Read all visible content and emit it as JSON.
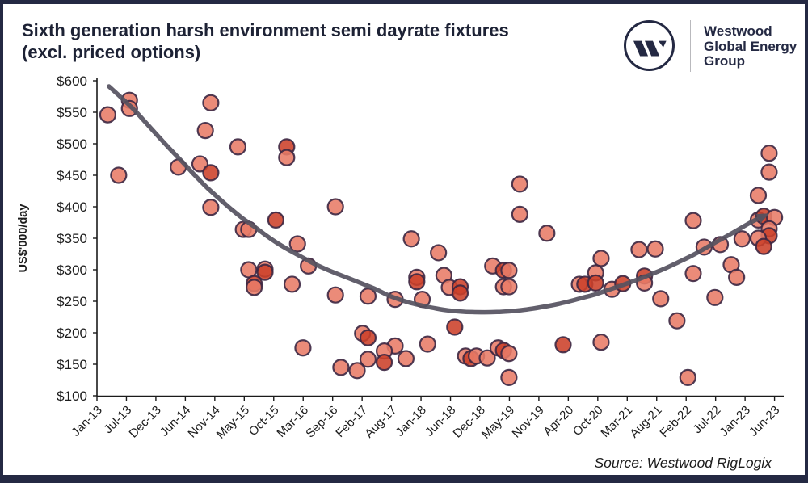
{
  "header": {
    "title_line1": "Sixth generation harsh environment semi dayrate fixtures",
    "title_line2": "(excl. priced options)"
  },
  "logo": {
    "name": "westwood-monogram",
    "line1": "Westwood",
    "line2": "Global Energy",
    "line3": "Group"
  },
  "footer": {
    "source": "Source: Westwood RigLogix"
  },
  "chart_data": {
    "type": "scatter",
    "title": "Sixth generation harsh environment semi dayrate fixtures (excl. priced options)",
    "xlabel": "",
    "ylabel": "US$'000/day",
    "ylim": [
      100,
      600
    ],
    "y_ticks": [
      100,
      150,
      200,
      250,
      300,
      350,
      400,
      450,
      500,
      550,
      600
    ],
    "y_tick_prefix": "$",
    "x_tick_labels": [
      "Jan-13",
      "Jul-13",
      "Dec-13",
      "Jun-14",
      "Nov-14",
      "May-15",
      "Oct-15",
      "Mar-16",
      "Sep-16",
      "Feb-17",
      "Aug-17",
      "Jan-18",
      "Jun-18",
      "Dec-18",
      "May-19",
      "Nov-19",
      "Apr-20",
      "Oct-20",
      "Mar-21",
      "Aug-21",
      "Feb-22",
      "Jul-22",
      "Jan-23",
      "Jun-23"
    ],
    "x_start_month": "Jan-13",
    "x_end_month": "Jun-23",
    "grid": false,
    "legend": "none",
    "marker": "circle",
    "points": [
      {
        "date": "Mar-13",
        "rate": 546
      },
      {
        "date": "Jul-13",
        "rate": 569
      },
      {
        "date": "Jul-13",
        "rate": 556
      },
      {
        "date": "May-13",
        "rate": 450
      },
      {
        "date": "Apr-14",
        "rate": 463
      },
      {
        "date": "Aug-14",
        "rate": 468
      },
      {
        "date": "Oct-14",
        "rate": 454,
        "dark": true
      },
      {
        "date": "Oct-14",
        "rate": 565
      },
      {
        "date": "Sep-14",
        "rate": 521
      },
      {
        "date": "Mar-15",
        "rate": 495
      },
      {
        "date": "Oct-14",
        "rate": 399
      },
      {
        "date": "Apr-15",
        "rate": 364
      },
      {
        "date": "May-15",
        "rate": 364
      },
      {
        "date": "Oct-15",
        "rate": 379,
        "dark": true
      },
      {
        "date": "Dec-15",
        "rate": 495,
        "dark": true
      },
      {
        "date": "Dec-15",
        "rate": 478
      },
      {
        "date": "Feb-16",
        "rate": 341
      },
      {
        "date": "Apr-16",
        "rate": 306
      },
      {
        "date": "May-15",
        "rate": 300
      },
      {
        "date": "Aug-15",
        "rate": 301
      },
      {
        "date": "Aug-15",
        "rate": 296,
        "dark": true
      },
      {
        "date": "Jun-15",
        "rate": 278,
        "dark": true
      },
      {
        "date": "Jun-15",
        "rate": 272
      },
      {
        "date": "Jan-16",
        "rate": 277
      },
      {
        "date": "Mar-16",
        "rate": 176
      },
      {
        "date": "Sep-16",
        "rate": 400
      },
      {
        "date": "Sep-16",
        "rate": 260
      },
      {
        "date": "Mar-17",
        "rate": 258
      },
      {
        "date": "Aug-17",
        "rate": 253
      },
      {
        "date": "Jan-18",
        "rate": 253
      },
      {
        "date": "Nov-17",
        "rate": 349
      },
      {
        "date": "Dec-17",
        "rate": 288
      },
      {
        "date": "Dec-17",
        "rate": 281,
        "dark": true
      },
      {
        "date": "Apr-18",
        "rate": 327
      },
      {
        "date": "May-18",
        "rate": 291
      },
      {
        "date": "Jun-18",
        "rate": 272
      },
      {
        "date": "Aug-18",
        "rate": 273,
        "dark": true
      },
      {
        "date": "Aug-18",
        "rate": 263,
        "dark": true
      },
      {
        "date": "Feb-17",
        "rate": 199
      },
      {
        "date": "Mar-17",
        "rate": 192,
        "dark": true
      },
      {
        "date": "Aug-17",
        "rate": 179
      },
      {
        "date": "Jun-17",
        "rate": 171
      },
      {
        "date": "Mar-17",
        "rate": 158
      },
      {
        "date": "Jun-17",
        "rate": 153,
        "dark": true
      },
      {
        "date": "Oct-17",
        "rate": 159
      },
      {
        "date": "Oct-16",
        "rate": 145
      },
      {
        "date": "Jan-17",
        "rate": 140
      },
      {
        "date": "Feb-18",
        "rate": 182
      },
      {
        "date": "Jul-18",
        "rate": 209,
        "dark": true
      },
      {
        "date": "Sep-18",
        "rate": 163
      },
      {
        "date": "Oct-18",
        "rate": 159,
        "dark": true
      },
      {
        "date": "Nov-18",
        "rate": 163
      },
      {
        "date": "Jan-19",
        "rate": 160
      },
      {
        "date": "Mar-19",
        "rate": 176
      },
      {
        "date": "Apr-19",
        "rate": 172,
        "dark": true
      },
      {
        "date": "May-19",
        "rate": 167
      },
      {
        "date": "May-19",
        "rate": 129
      },
      {
        "date": "Feb-19",
        "rate": 306
      },
      {
        "date": "Apr-19",
        "rate": 299,
        "dark": true
      },
      {
        "date": "May-19",
        "rate": 299
      },
      {
        "date": "Apr-19",
        "rate": 273
      },
      {
        "date": "May-19",
        "rate": 273
      },
      {
        "date": "Jul-19",
        "rate": 436
      },
      {
        "date": "Jul-19",
        "rate": 388
      },
      {
        "date": "Dec-19",
        "rate": 358
      },
      {
        "date": "Mar-20",
        "rate": 181,
        "dark": true
      },
      {
        "date": "Oct-20",
        "rate": 185
      },
      {
        "date": "Oct-20",
        "rate": 318
      },
      {
        "date": "Sep-20",
        "rate": 295
      },
      {
        "date": "Jun-20",
        "rate": 277
      },
      {
        "date": "Jul-20",
        "rate": 277,
        "dark": true
      },
      {
        "date": "Sep-20",
        "rate": 279,
        "dark": true
      },
      {
        "date": "Dec-20",
        "rate": 269
      },
      {
        "date": "Feb-21",
        "rate": 278,
        "dark": true
      },
      {
        "date": "Jun-21",
        "rate": 290,
        "dark": true
      },
      {
        "date": "Jun-21",
        "rate": 279
      },
      {
        "date": "May-21",
        "rate": 332
      },
      {
        "date": "Aug-21",
        "rate": 333
      },
      {
        "date": "Sep-21",
        "rate": 254
      },
      {
        "date": "Dec-21",
        "rate": 219
      },
      {
        "date": "Feb-22",
        "rate": 129
      },
      {
        "date": "Mar-22",
        "rate": 294
      },
      {
        "date": "Mar-22",
        "rate": 378
      },
      {
        "date": "May-22",
        "rate": 336
      },
      {
        "date": "Jul-22",
        "rate": 256
      },
      {
        "date": "Aug-22",
        "rate": 340
      },
      {
        "date": "Oct-22",
        "rate": 308
      },
      {
        "date": "Nov-22",
        "rate": 288
      },
      {
        "date": "Dec-22",
        "rate": 349
      },
      {
        "date": "Mar-23",
        "rate": 418
      },
      {
        "date": "Mar-23",
        "rate": 379
      },
      {
        "date": "Apr-23",
        "rate": 385,
        "dark": true
      },
      {
        "date": "Jun-23",
        "rate": 383
      },
      {
        "date": "May-23",
        "rate": 365
      },
      {
        "date": "May-23",
        "rate": 354,
        "dark": true
      },
      {
        "date": "Mar-23",
        "rate": 350
      },
      {
        "date": "Apr-23",
        "rate": 337,
        "dark": true
      },
      {
        "date": "May-23",
        "rate": 455
      },
      {
        "date": "May-23",
        "rate": 485
      }
    ],
    "trend": {
      "kind": "polynomial-trendline-with-arrow",
      "points": [
        [
          2.2,
          591.0
        ],
        [
          4.5,
          573.1
        ],
        [
          6.7,
          555.1
        ],
        [
          8.9,
          534.6
        ],
        [
          11.2,
          512.8
        ],
        [
          13.4,
          492.3
        ],
        [
          15.7,
          471.8
        ],
        [
          17.9,
          451.3
        ],
        [
          20.1,
          432.1
        ],
        [
          22.4,
          414.1
        ],
        [
          24.6,
          397.4
        ],
        [
          26.8,
          382.1
        ],
        [
          29.1,
          367.9
        ],
        [
          31.3,
          353.8
        ],
        [
          33.5,
          341.0
        ],
        [
          35.8,
          329.5
        ],
        [
          38.0,
          319.2
        ],
        [
          40.2,
          309.0
        ],
        [
          42.5,
          300.0
        ],
        [
          44.7,
          292.3
        ],
        [
          47.0,
          284.6
        ],
        [
          49.2,
          276.9
        ],
        [
          51.4,
          269.2
        ],
        [
          53.7,
          259.6
        ],
        [
          55.9,
          252.6
        ],
        [
          58.1,
          246.8
        ],
        [
          60.4,
          242.3
        ],
        [
          62.6,
          238.5
        ],
        [
          64.8,
          235.5
        ],
        [
          67.1,
          233.7
        ],
        [
          69.3,
          232.8
        ],
        [
          71.5,
          232.6
        ],
        [
          73.8,
          232.9
        ],
        [
          76.0,
          234.0
        ],
        [
          78.3,
          235.9
        ],
        [
          80.5,
          238.5
        ],
        [
          82.7,
          241.7
        ],
        [
          85.0,
          245.5
        ],
        [
          87.2,
          250.0
        ],
        [
          89.4,
          255.1
        ],
        [
          91.7,
          260.3
        ],
        [
          93.9,
          266.7
        ],
        [
          96.1,
          273.1
        ],
        [
          98.4,
          280.1
        ],
        [
          100.6,
          287.2
        ],
        [
          102.8,
          294.9
        ],
        [
          105.1,
          303.2
        ],
        [
          107.3,
          312.2
        ],
        [
          109.6,
          321.8
        ],
        [
          111.8,
          332.1
        ],
        [
          114.0,
          342.9
        ],
        [
          116.3,
          353.8
        ],
        [
          118.5,
          364.7
        ],
        [
          120.7,
          375.6
        ],
        [
          122.4,
          382.7
        ]
      ]
    },
    "colors": {
      "point_fill": "#E87B67",
      "point_fill_dark": "#CC4029",
      "point_stroke": "#3C2742",
      "trend": "#55515F",
      "axis": "#1a1a1a",
      "text": "#1c1c1c",
      "frame": "#242943"
    }
  }
}
